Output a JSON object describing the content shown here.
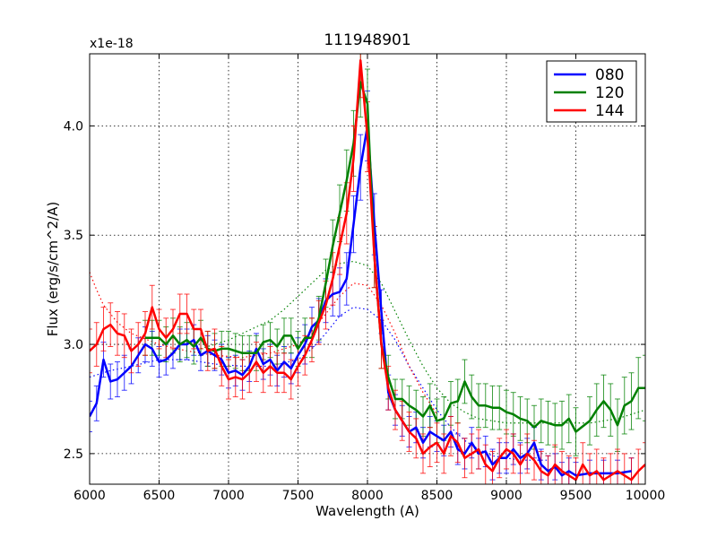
{
  "chart_data": {
    "type": "line",
    "title": "111948901",
    "xlabel": "Wavelength (A)",
    "ylabel": "Flux (erg/s/cm^2/A)",
    "offset_label": "x1e-18",
    "xlim": [
      6000,
      10000
    ],
    "ylim": [
      2.36,
      4.33
    ],
    "xticks": [
      6000,
      6500,
      7000,
      7500,
      8000,
      8500,
      9000,
      9500,
      10000
    ],
    "yticks": [
      2.5,
      3.0,
      3.5,
      4.0
    ],
    "xtick_labels": [
      "6000",
      "6500",
      "7000",
      "7500",
      "8000",
      "8500",
      "9000",
      "9500",
      "10000"
    ],
    "ytick_labels": [
      "2.5",
      "3.0",
      "3.5",
      "4.0"
    ],
    "grid": true,
    "legend_position": "top-right",
    "series": [
      {
        "name": "080",
        "color": "#0000ff",
        "x": [
          6000,
          6050,
          6100,
          6150,
          6200,
          6250,
          6300,
          6350,
          6400,
          6450,
          6500,
          6550,
          6600,
          6650,
          6700,
          6750,
          6800,
          6850,
          6900,
          6950,
          7000,
          7050,
          7100,
          7150,
          7200,
          7250,
          7300,
          7350,
          7400,
          7450,
          7500,
          7550,
          7600,
          7650,
          7700,
          7750,
          7800,
          7850,
          7900,
          7950,
          8000,
          8050,
          8100,
          8150,
          8200,
          8250,
          8300,
          8350,
          8400,
          8450,
          8500,
          8550,
          8600,
          8650,
          8700,
          8750,
          8800,
          8850,
          8900,
          8950,
          9000,
          9050,
          9100,
          9150,
          9200,
          9250,
          9300,
          9350,
          9400,
          9450,
          9500,
          9600,
          9700,
          9800,
          9900
        ],
        "values": [
          2.67,
          2.73,
          2.93,
          2.83,
          2.84,
          2.87,
          2.9,
          2.95,
          3.0,
          2.98,
          2.92,
          2.93,
          2.96,
          3.0,
          3.0,
          3.02,
          2.95,
          2.97,
          2.95,
          2.93,
          2.87,
          2.88,
          2.86,
          2.9,
          2.98,
          2.91,
          2.93,
          2.88,
          2.92,
          2.89,
          2.95,
          3.0,
          3.08,
          3.11,
          3.2,
          3.23,
          3.24,
          3.3,
          3.55,
          3.81,
          4.0,
          3.55,
          3.15,
          2.78,
          2.7,
          2.65,
          2.6,
          2.62,
          2.55,
          2.6,
          2.58,
          2.56,
          2.6,
          2.52,
          2.5,
          2.55,
          2.5,
          2.51,
          2.45,
          2.48,
          2.48,
          2.52,
          2.48,
          2.5,
          2.55,
          2.45,
          2.42,
          2.44,
          2.4,
          2.42,
          2.4,
          2.41,
          2.41,
          2.41,
          2.42
        ],
        "errors": [
          0.07,
          0.08,
          0.08,
          0.08,
          0.08,
          0.08,
          0.08,
          0.08,
          0.08,
          0.08,
          0.07,
          0.07,
          0.07,
          0.07,
          0.07,
          0.07,
          0.07,
          0.07,
          0.07,
          0.07,
          0.07,
          0.07,
          0.07,
          0.07,
          0.07,
          0.07,
          0.07,
          0.07,
          0.07,
          0.07,
          0.08,
          0.09,
          0.09,
          0.1,
          0.1,
          0.1,
          0.11,
          0.12,
          0.13,
          0.15,
          0.16,
          0.14,
          0.1,
          0.08,
          0.07,
          0.07,
          0.07,
          0.07,
          0.07,
          0.07,
          0.07,
          0.07,
          0.07,
          0.07,
          0.07,
          0.07,
          0.07,
          0.07,
          0.07,
          0.07,
          0.07,
          0.07,
          0.07,
          0.07,
          0.07,
          0.07,
          0.07,
          0.06,
          0.06,
          0.06,
          0.06,
          0.06,
          0.06,
          0.06,
          0.06
        ],
        "fit": {
          "x": [
            6000,
            6150,
            6300,
            6500,
            6700,
            6900,
            7100,
            7300,
            7500,
            7600,
            7700,
            7800,
            7900,
            8000,
            8100,
            8200,
            8300,
            8400,
            8500,
            8600,
            8700,
            8800,
            8900,
            9000,
            9100,
            9200,
            9300
          ],
          "values": [
            2.85,
            2.88,
            2.9,
            2.93,
            2.93,
            2.91,
            2.9,
            2.9,
            2.93,
            2.98,
            3.05,
            3.13,
            3.17,
            3.16,
            3.11,
            3.02,
            2.9,
            2.8,
            2.7,
            2.62,
            2.56,
            2.52,
            2.49,
            2.48,
            2.47,
            2.47,
            2.47
          ]
        }
      },
      {
        "name": "120",
        "color": "#008000",
        "x": [
          6400,
          6450,
          6500,
          6550,
          6600,
          6650,
          6700,
          6750,
          6800,
          6850,
          6900,
          6950,
          7000,
          7050,
          7100,
          7150,
          7200,
          7250,
          7300,
          7350,
          7400,
          7450,
          7500,
          7550,
          7600,
          7650,
          7700,
          7750,
          7800,
          7850,
          7900,
          7950,
          8000,
          8050,
          8100,
          8150,
          8200,
          8250,
          8300,
          8350,
          8400,
          8450,
          8500,
          8550,
          8600,
          8650,
          8700,
          8750,
          8800,
          8850,
          8900,
          8950,
          9000,
          9050,
          9100,
          9150,
          9200,
          9250,
          9300,
          9350,
          9400,
          9450,
          9500,
          9600,
          9650,
          9700,
          9750,
          9800,
          9850,
          9900,
          9950,
          10000
        ],
        "values": [
          3.03,
          3.03,
          3.03,
          3.0,
          3.04,
          3.0,
          3.02,
          2.99,
          3.03,
          2.98,
          2.97,
          2.98,
          2.98,
          2.97,
          2.96,
          2.96,
          2.96,
          3.01,
          3.02,
          2.99,
          3.04,
          3.04,
          2.98,
          3.03,
          3.03,
          3.12,
          3.28,
          3.45,
          3.6,
          3.75,
          3.92,
          4.2,
          4.1,
          3.4,
          3.0,
          2.85,
          2.75,
          2.75,
          2.72,
          2.7,
          2.67,
          2.72,
          2.65,
          2.66,
          2.73,
          2.74,
          2.83,
          2.76,
          2.72,
          2.72,
          2.71,
          2.71,
          2.69,
          2.68,
          2.66,
          2.65,
          2.62,
          2.65,
          2.64,
          2.63,
          2.63,
          2.66,
          2.6,
          2.65,
          2.7,
          2.74,
          2.7,
          2.63,
          2.72,
          2.74,
          2.8,
          2.8
        ],
        "errors": [
          0.08,
          0.08,
          0.08,
          0.08,
          0.08,
          0.08,
          0.08,
          0.08,
          0.08,
          0.08,
          0.08,
          0.08,
          0.08,
          0.08,
          0.08,
          0.08,
          0.08,
          0.08,
          0.08,
          0.08,
          0.08,
          0.08,
          0.08,
          0.09,
          0.09,
          0.1,
          0.11,
          0.12,
          0.13,
          0.14,
          0.15,
          0.16,
          0.16,
          0.14,
          0.11,
          0.1,
          0.09,
          0.09,
          0.09,
          0.09,
          0.09,
          0.1,
          0.1,
          0.1,
          0.1,
          0.1,
          0.1,
          0.1,
          0.1,
          0.1,
          0.1,
          0.1,
          0.1,
          0.1,
          0.1,
          0.1,
          0.1,
          0.1,
          0.1,
          0.1,
          0.11,
          0.11,
          0.11,
          0.11,
          0.12,
          0.12,
          0.12,
          0.12,
          0.13,
          0.13,
          0.14,
          0.15
        ],
        "fit": {
          "x": [
            6800,
            6900,
            7000,
            7100,
            7200,
            7300,
            7400,
            7500,
            7600,
            7700,
            7800,
            7900,
            8000,
            8100,
            8200,
            8300,
            8400,
            8500,
            8600,
            8700,
            8800,
            8900,
            9000,
            9100,
            9200,
            9300,
            9400,
            9500,
            9600,
            9700,
            9800,
            9900,
            10000
          ],
          "values": [
            2.98,
            3.0,
            3.02,
            3.05,
            3.08,
            3.11,
            3.16,
            3.22,
            3.28,
            3.34,
            3.37,
            3.38,
            3.36,
            3.28,
            3.15,
            3.02,
            2.9,
            2.8,
            2.73,
            2.69,
            2.66,
            2.65,
            2.64,
            2.64,
            2.64,
            2.64,
            2.64,
            2.64,
            2.64,
            2.65,
            2.66,
            2.68,
            2.7
          ]
        }
      },
      {
        "name": "144",
        "color": "#ff0000",
        "x": [
          6000,
          6050,
          6100,
          6150,
          6200,
          6250,
          6300,
          6350,
          6400,
          6450,
          6500,
          6550,
          6600,
          6650,
          6700,
          6750,
          6800,
          6850,
          6900,
          6950,
          7000,
          7050,
          7100,
          7150,
          7200,
          7250,
          7300,
          7350,
          7400,
          7450,
          7500,
          7550,
          7600,
          7650,
          7700,
          7750,
          7800,
          7850,
          7900,
          7950,
          8000,
          8050,
          8100,
          8150,
          8200,
          8250,
          8300,
          8350,
          8400,
          8450,
          8500,
          8550,
          8600,
          8650,
          8700,
          8750,
          8800,
          8850,
          8900,
          8950,
          9000,
          9050,
          9100,
          9150,
          9200,
          9250,
          9300,
          9350,
          9400,
          9450,
          9500,
          9550,
          9600,
          9650,
          9700,
          9750,
          9800,
          9850,
          9900,
          9950,
          10000
        ],
        "values": [
          2.97,
          3.0,
          3.07,
          3.09,
          3.05,
          3.04,
          2.97,
          3.0,
          3.05,
          3.17,
          3.07,
          3.03,
          3.07,
          3.14,
          3.14,
          3.07,
          3.07,
          2.97,
          2.98,
          2.9,
          2.84,
          2.85,
          2.84,
          2.87,
          2.92,
          2.87,
          2.9,
          2.87,
          2.87,
          2.84,
          2.9,
          2.95,
          3.02,
          3.1,
          3.18,
          3.3,
          3.45,
          3.6,
          3.85,
          4.3,
          3.95,
          3.4,
          3.0,
          2.8,
          2.7,
          2.65,
          2.6,
          2.57,
          2.5,
          2.53,
          2.55,
          2.5,
          2.58,
          2.55,
          2.48,
          2.5,
          2.52,
          2.45,
          2.42,
          2.48,
          2.52,
          2.5,
          2.45,
          2.5,
          2.47,
          2.42,
          2.4,
          2.45,
          2.42,
          2.4,
          2.38,
          2.45,
          2.4,
          2.42,
          2.38,
          2.4,
          2.42,
          2.4,
          2.38,
          2.42,
          2.45
        ],
        "errors": [
          0.1,
          0.1,
          0.1,
          0.1,
          0.1,
          0.1,
          0.1,
          0.1,
          0.1,
          0.1,
          0.09,
          0.09,
          0.09,
          0.09,
          0.09,
          0.09,
          0.09,
          0.09,
          0.09,
          0.09,
          0.09,
          0.09,
          0.09,
          0.09,
          0.09,
          0.09,
          0.09,
          0.09,
          0.09,
          0.09,
          0.09,
          0.09,
          0.1,
          0.1,
          0.11,
          0.12,
          0.13,
          0.14,
          0.15,
          0.17,
          0.16,
          0.14,
          0.11,
          0.1,
          0.09,
          0.09,
          0.09,
          0.09,
          0.09,
          0.09,
          0.09,
          0.09,
          0.09,
          0.09,
          0.09,
          0.09,
          0.09,
          0.09,
          0.09,
          0.09,
          0.09,
          0.09,
          0.09,
          0.09,
          0.09,
          0.09,
          0.09,
          0.09,
          0.09,
          0.09,
          0.1,
          0.1,
          0.1,
          0.1,
          0.1,
          0.1,
          0.1,
          0.1,
          0.1,
          0.1,
          0.1
        ],
        "fit": {
          "x": [
            6000,
            6050,
            6100,
            6200,
            6300,
            6500,
            6700,
            6900,
            7100,
            7300,
            7500,
            7600,
            7700,
            7800,
            7900,
            8000,
            8100,
            8200,
            8300,
            8400,
            8500
          ],
          "values": [
            3.33,
            3.25,
            3.18,
            3.1,
            3.05,
            3.0,
            2.97,
            2.95,
            2.94,
            2.96,
            3.0,
            3.06,
            3.14,
            3.22,
            3.28,
            3.27,
            3.18,
            3.05,
            2.9,
            2.78,
            2.68
          ]
        }
      }
    ]
  }
}
